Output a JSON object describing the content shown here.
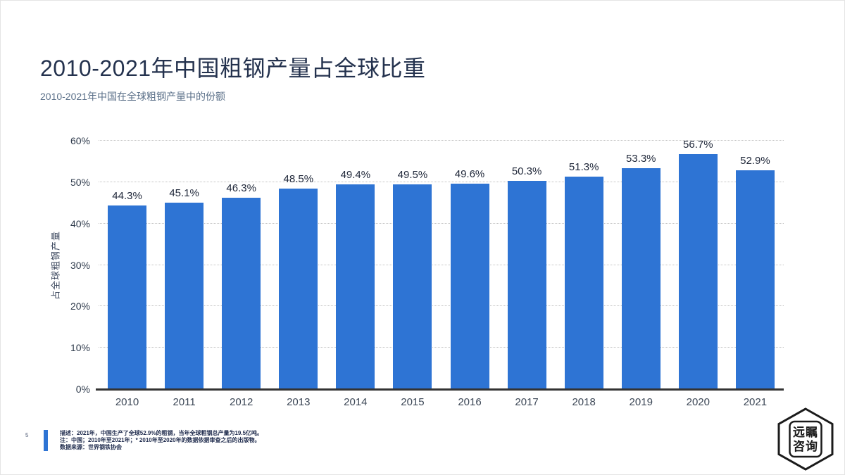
{
  "header": {
    "title": "2010-2021年中国粗钢产量占全球比重",
    "subtitle": "2010-2021年中国在全球粗钢产量中的份额"
  },
  "chart_data": {
    "type": "bar",
    "title": "2010-2021年中国粗钢产量占全球比重",
    "categories": [
      "2010",
      "2011",
      "2012",
      "2013",
      "2014",
      "2015",
      "2016",
      "2017",
      "2018",
      "2019",
      "2020",
      "2021"
    ],
    "values": [
      44.3,
      45.1,
      46.3,
      48.5,
      49.4,
      49.5,
      49.6,
      50.3,
      51.3,
      53.3,
      56.7,
      52.9
    ],
    "value_labels": [
      "44.3%",
      "45.1%",
      "46.3%",
      "48.5%",
      "49.4%",
      "49.5%",
      "49.6%",
      "50.3%",
      "51.3%",
      "53.3%",
      "56.7%",
      "52.9%"
    ],
    "xlabel": "",
    "ylabel": "占全球粗钢产量",
    "ylim": [
      0,
      60
    ],
    "yticks": [
      "0%",
      "10%",
      "20%",
      "30%",
      "40%",
      "50%",
      "60%"
    ],
    "grid": "horizontal-dotted",
    "legend": "none",
    "bar_color": "#2E74D4"
  },
  "footer": {
    "page_number": "5",
    "note_description": "描述：2021年，中国生产了全球52.9%的粗钢，当年全球粗钢总产量为19.5亿吨。",
    "note_details": "注：中国；2010年至2021年；* 2010年至2020年的数据依据审查之后的出版物。",
    "note_source": "数据来源：世界钢铁协会"
  },
  "logo": {
    "name": "远瞩咨询",
    "line1": "远瞩",
    "line2": "咨询"
  },
  "colors": {
    "bar": "#2E74D4",
    "accent": "#2E74D4",
    "title": "#24324E",
    "subtitle": "#5B7089",
    "axis": "#333333",
    "gridline": "#C2C2C2"
  }
}
